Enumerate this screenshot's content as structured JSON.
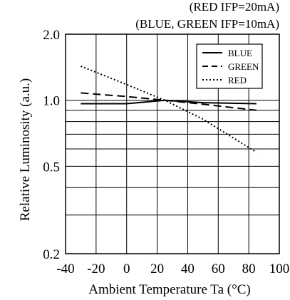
{
  "chart_data": {
    "type": "line",
    "title": "",
    "conditions": [
      "(RED IFP=20mA)",
      "(BLUE, GREEN IFP=10mA)"
    ],
    "xlabel": "Ambient Temperature Ta (°C)",
    "ylabel": "Relative Luminosity (a.u.)",
    "x_ticks": [
      -40,
      -20,
      0,
      20,
      40,
      60,
      80,
      100
    ],
    "x_tick_labels": [
      "-40",
      "-20",
      "0",
      "20",
      "40",
      "60",
      "80",
      "100"
    ],
    "y_scale": "log",
    "y_ticks": [
      0.2,
      0.5,
      1.0,
      2.0
    ],
    "y_tick_labels": [
      "0.2",
      "0.5",
      "1.0",
      "2.0"
    ],
    "y_grid": [
      0.3,
      0.4,
      0.6,
      0.7,
      0.8,
      0.9,
      1.0
    ],
    "xlim": [
      -40,
      100
    ],
    "ylim": [
      0.2,
      2.0
    ],
    "grid": true,
    "legend_position": "top-right",
    "series": [
      {
        "name": "BLUE",
        "style": "solid",
        "x": [
          -30,
          0,
          25,
          50,
          85
        ],
        "y": [
          0.965,
          0.965,
          1.0,
          0.975,
          0.965
        ]
      },
      {
        "name": "GREEN",
        "style": "dashed",
        "x": [
          -30,
          0,
          25,
          50,
          85
        ],
        "y": [
          1.08,
          1.04,
          1.0,
          0.96,
          0.9
        ]
      },
      {
        "name": "RED",
        "style": "dotted",
        "x": [
          -30,
          0,
          25,
          50,
          85
        ],
        "y": [
          1.43,
          1.18,
          1.0,
          0.82,
          0.58
        ]
      }
    ]
  }
}
